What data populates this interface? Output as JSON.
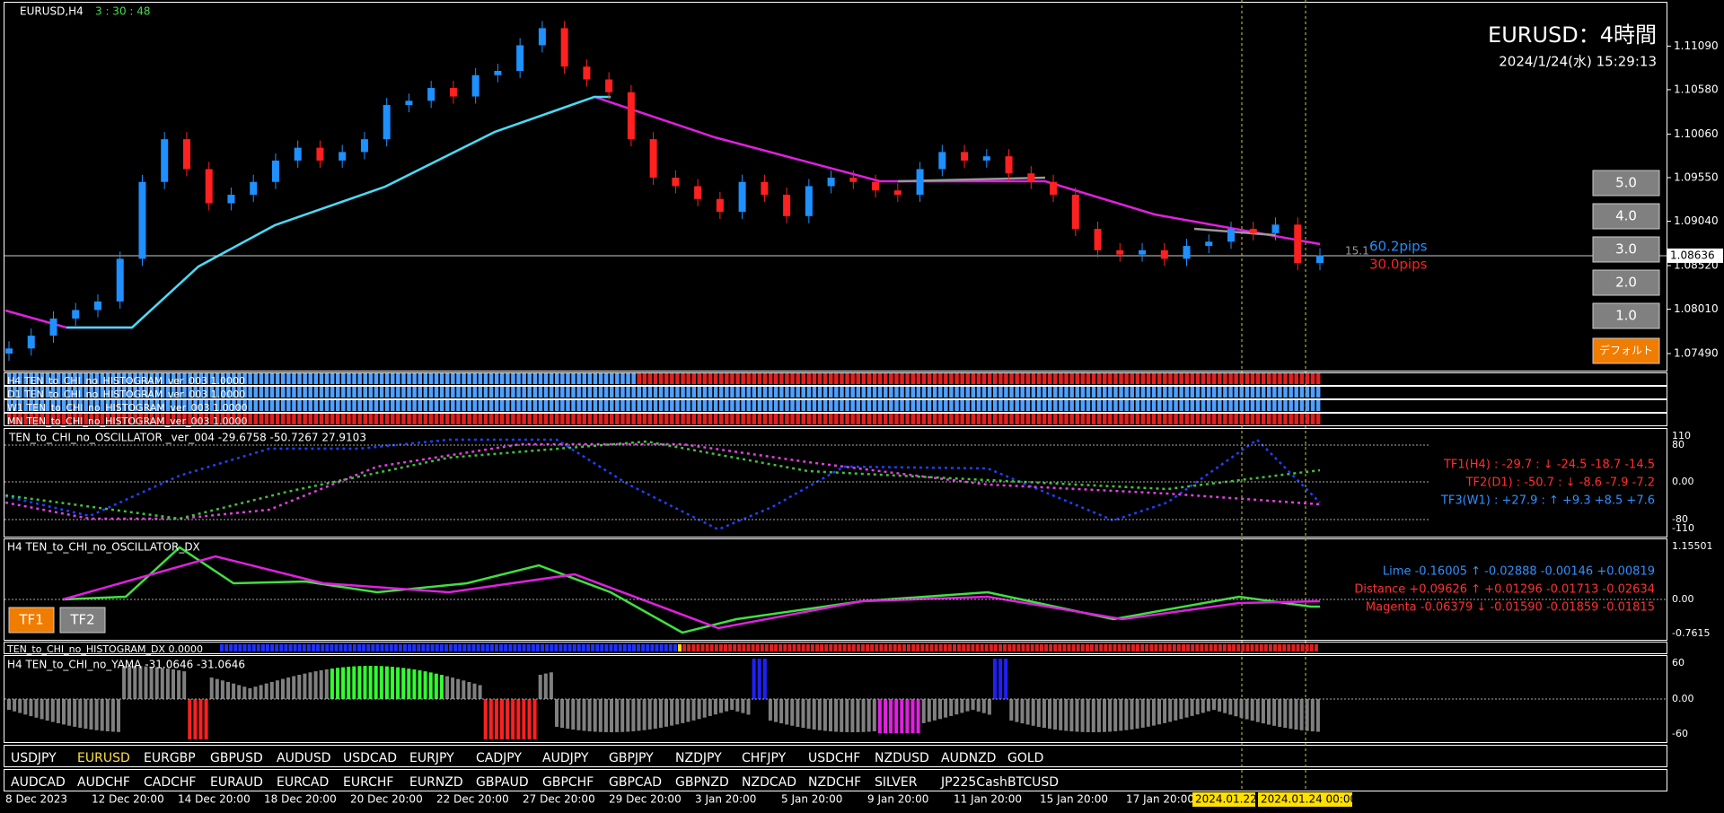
{
  "header": {
    "symbol": "EURUSD,H4",
    "timer": "3 : 30 : 48",
    "title": "EURUSD：4時間",
    "datetime": "2024/1/24(水) 15:29:13"
  },
  "main": {
    "ylim": [
      1.0728,
      1.1163
    ],
    "price_ticks": [
      {
        "value": 1.1109,
        "label": "1.11090"
      },
      {
        "value": 1.1058,
        "label": "1.10580"
      },
      {
        "value": 1.1006,
        "label": "1.10060"
      },
      {
        "value": 1.0955,
        "label": "1.09550"
      },
      {
        "value": 1.0904,
        "label": "1.09040"
      },
      {
        "value": 1.0852,
        "label": "1.08520"
      },
      {
        "value": 1.0801,
        "label": "1.08010"
      },
      {
        "value": 1.0749,
        "label": "1.07490"
      }
    ],
    "current_price": {
      "value": 1.08636,
      "label": "1.08636"
    },
    "closes": [
      1.0755,
      1.077,
      1.079,
      1.08,
      1.081,
      1.086,
      1.095,
      1.1,
      1.0965,
      1.0925,
      1.0935,
      1.095,
      1.0975,
      1.099,
      1.0975,
      1.0985,
      1.1,
      1.104,
      1.1045,
      1.106,
      1.105,
      1.1075,
      1.108,
      1.111,
      1.113,
      1.1085,
      1.107,
      1.1055,
      1.1,
      1.0955,
      1.0945,
      1.093,
      1.0915,
      1.095,
      1.0935,
      1.091,
      1.0945,
      1.0955,
      1.095,
      1.094,
      1.0935,
      1.0965,
      1.0985,
      1.0975,
      1.098,
      1.096,
      1.095,
      1.0935,
      1.0895,
      1.087,
      1.0865,
      1.087,
      1.086,
      1.0875,
      1.088,
      1.0895,
      1.089,
      1.09,
      1.0855,
      1.0864
    ],
    "pips_blue": "60.2pips",
    "pips_red": "30.0pips",
    "pips_gray": "15.1",
    "buttons": [
      "5.0",
      "4.0",
      "3.0",
      "2.0",
      "1.0"
    ],
    "default_button": "デフォルト"
  },
  "histograms": [
    "H4 TEN_to_CHI_no_HISTOGRAM_ver_003 1.0000",
    "D1 TEN_to_CHI_no_HISTOGRAM_ver_003 1.0000",
    "W1 TEN_to_CHI_no_HISTOGRAM_ver_003 1.0000",
    "MN TEN_to_CHI_no_HISTOGRAM_ver_003 1.0000"
  ],
  "oscillator": {
    "title": "TEN_to_CHI_no_OSCILLATOR _ver_004 -29.6758 -50.7267 27.9103",
    "axis": [
      "110",
      "80",
      "0.00",
      "-80",
      "-110"
    ],
    "lines": [
      "TF1(H4) : -29.7 : ↓ -24.5 -18.7 -14.5",
      "TF2(D1) : -50.7 : ↓ -8.6 -7.9 -7.2",
      "TF3(W1) : +27.9 : ↑ +9.3 +8.5 +7.6"
    ]
  },
  "dx": {
    "title": "H4 TEN_to_CHI_no_OSCILLATOR_DX",
    "axis": [
      "1.15501",
      "0.00",
      "-0.7615"
    ],
    "lines": [
      "Lime -0.16005 ↑ -0.02888 -0.00146 +0.00819",
      "Distance +0.09626 ↑ +0.01296 -0.01713 -0.02634",
      "Magenta -0.06379 ↓ -0.01590 -0.01859 -0.01815"
    ],
    "buttons": [
      "TF1",
      "TF2"
    ]
  },
  "hist_dx": "TEN_to_CHI_no_HISTOGRAM_DX 0.0000",
  "yama": {
    "title": "H4 TEN_to_CHI_no_YAMA -31.0646 -31.0646",
    "axis": [
      "60",
      "0.00",
      "-60"
    ]
  },
  "symbols_row1": [
    "USDJPY",
    "EURUSD",
    "EURGBP",
    "GBPUSD",
    "AUDUSD",
    "USDCAD",
    "EURJPY",
    "CADJPY",
    "AUDJPY",
    "GBPJPY",
    "NZDJPY",
    "CHFJPY",
    "USDCHF",
    "NZDUSD",
    "AUDNZD",
    "GOLD"
  ],
  "symbols_row2": [
    "AUDCAD",
    "AUDCHF",
    "CADCHF",
    "EURAUD",
    "EURCAD",
    "EURCHF",
    "EURNZD",
    "GBPAUD",
    "GBPCHF",
    "GBPCAD",
    "GBPNZD",
    "NZDCAD",
    "NZDCHF",
    "SILVER",
    "JP225Cash",
    "BTCUSD"
  ],
  "dates": [
    "8 Dec 2023",
    "12 Dec 20:00",
    "14 Dec 20:00",
    "18 Dec 20:00",
    "20 Dec 20:00",
    "22 Dec 20:00",
    "27 Dec 20:00",
    "29 Dec 20:00",
    "3 Jan 20:00",
    "5 Jan 20:00",
    "9 Jan 20:00",
    "11 Jan 20:00",
    "15 Jan 20:00",
    "17 Jan 20:00"
  ],
  "date_markers": [
    "2024.01.22",
    "2024.01.24 00:00"
  ]
}
